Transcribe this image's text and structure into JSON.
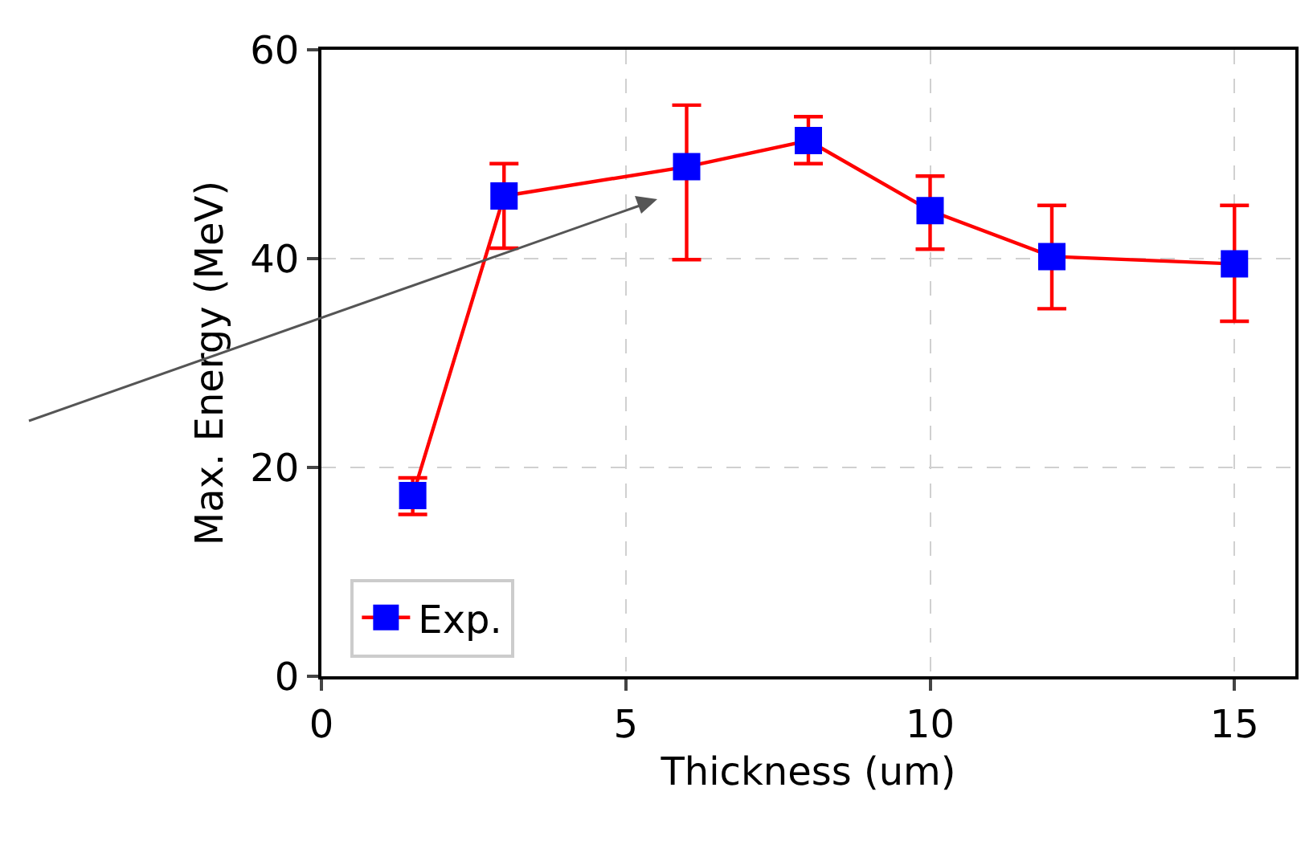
{
  "chart_data": {
    "type": "line",
    "xlabel": "Thickness (um)",
    "ylabel": "Max. Energy (MeV)",
    "x": [
      1.5,
      3,
      6,
      8,
      10,
      12,
      15
    ],
    "series": [
      {
        "name": "Exp.",
        "color": "#ff0000",
        "colors": [
          "#0000ff",
          "#0000ff",
          "#0000ff",
          "#0000ff",
          "#0000ff",
          "#0000ff",
          "#0000ff"
        ],
        "values": [
          17.3,
          46.0,
          48.8,
          51.3,
          44.6,
          40.2,
          39.5
        ],
        "errors": [
          [
            15.5,
            19.0
          ],
          [
            41.0,
            49.1
          ],
          [
            39.9,
            54.7
          ],
          [
            49.1,
            53.6
          ],
          [
            40.9,
            47.9
          ],
          [
            35.2,
            45.1
          ],
          [
            34.0,
            45.1
          ]
        ]
      }
    ],
    "xlim": [
      0,
      16
    ],
    "xticks": [
      0,
      5,
      10,
      15
    ],
    "ylim": [
      0,
      60
    ],
    "yticks": [
      0,
      20,
      40,
      60
    ],
    "grid": true,
    "legend": "bottom left",
    "marker": "square",
    "line_style": "solid"
  }
}
